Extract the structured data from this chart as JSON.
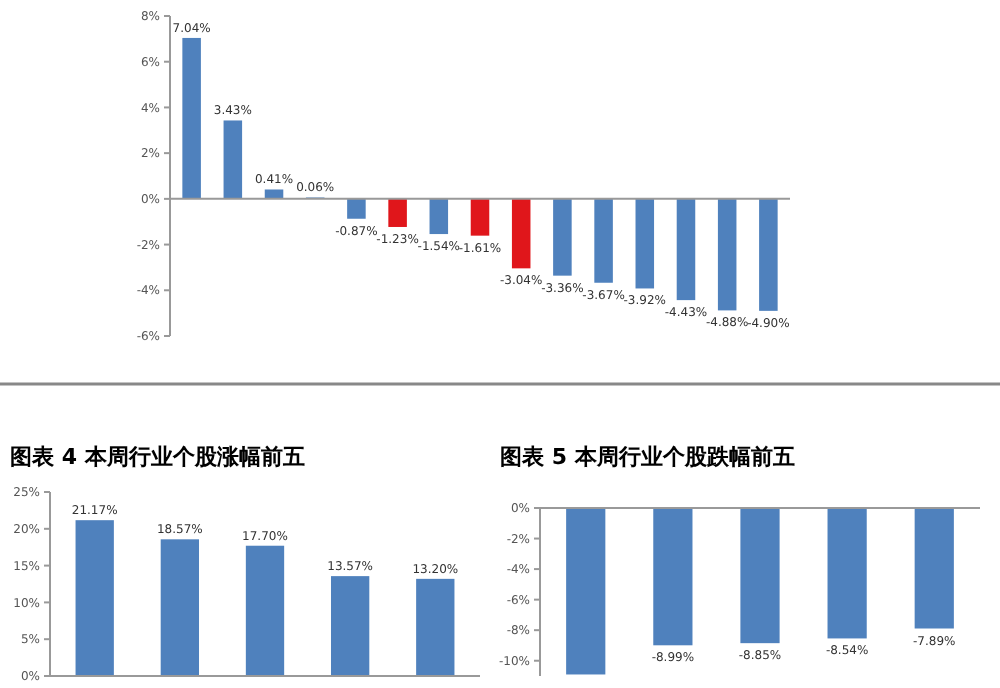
{
  "chart_data": [
    {
      "type": "bar",
      "categories": [
        null,
        null,
        null,
        null,
        null,
        null,
        null,
        null,
        null,
        null,
        null,
        null,
        null,
        null,
        null
      ],
      "values": [
        7.04,
        3.43,
        0.41,
        0.06,
        -0.87,
        -1.23,
        -1.54,
        -1.61,
        -3.04,
        -3.36,
        -3.67,
        -3.92,
        -4.43,
        -4.88,
        -4.9
      ],
      "value_labels": [
        "7.04%",
        "3.43%",
        "0.41%",
        "0.06%",
        "-0.87%",
        "-1.23%",
        "-1.54%",
        "-1.61%",
        "-3.04%",
        "-3.36%",
        "-3.67%",
        "-3.92%",
        "-4.43%",
        "-4.88%",
        "-4.90%"
      ],
      "colors": [
        "#4f81bd",
        "#4f81bd",
        "#4f81bd",
        "#4f81bd",
        "#4f81bd",
        "#e0161b",
        "#4f81bd",
        "#e0161b",
        "#e0161b",
        "#4f81bd",
        "#4f81bd",
        "#4f81bd",
        "#4f81bd",
        "#4f81bd",
        "#4f81bd"
      ],
      "ylim": [
        -6,
        8
      ],
      "yticks": [
        {
          "value": -6,
          "label": "-6%"
        },
        {
          "value": -4,
          "label": "-4%"
        },
        {
          "value": -2,
          "label": "-2%"
        },
        {
          "value": 0,
          "label": "0%"
        },
        {
          "value": 2,
          "label": "2%"
        },
        {
          "value": 4,
          "label": "4%"
        },
        {
          "value": 6,
          "label": "6%"
        },
        {
          "value": 8,
          "label": "8%"
        }
      ]
    },
    {
      "type": "bar",
      "title": "图表 4 本周行业个股涨幅前五",
      "categories": [
        null,
        null,
        null,
        null,
        null
      ],
      "values": [
        21.17,
        18.57,
        17.7,
        13.57,
        13.2
      ],
      "value_labels": [
        "21.17%",
        "18.57%",
        "17.70%",
        "13.57%",
        "13.20%"
      ],
      "color": "#4f81bd",
      "ylim": [
        0,
        25
      ],
      "yticks": [
        {
          "value": 0,
          "label": "0%"
        },
        {
          "value": 5,
          "label": "5%"
        },
        {
          "value": 10,
          "label": "10%"
        },
        {
          "value": 15,
          "label": "15%"
        },
        {
          "value": 20,
          "label": "20%"
        },
        {
          "value": 25,
          "label": "25%"
        }
      ]
    },
    {
      "type": "bar",
      "title": "图表 5 本周行业个股跌幅前五",
      "categories": [
        null,
        null,
        null,
        null,
        null
      ],
      "values": [
        -10.9,
        -8.99,
        -8.85,
        -8.54,
        -7.89
      ],
      "value_labels": [
        null,
        "-8.99%",
        "-8.85%",
        "-8.54%",
        "-7.89%"
      ],
      "color": "#4f81bd",
      "ylim": [
        -11,
        0
      ],
      "yticks": [
        {
          "value": -10,
          "label": "-10%"
        },
        {
          "value": -8,
          "label": "-8%"
        },
        {
          "value": -6,
          "label": "-6%"
        },
        {
          "value": -4,
          "label": "-4%"
        },
        {
          "value": -2,
          "label": "-2%"
        },
        {
          "value": 0,
          "label": "0%"
        }
      ]
    }
  ]
}
